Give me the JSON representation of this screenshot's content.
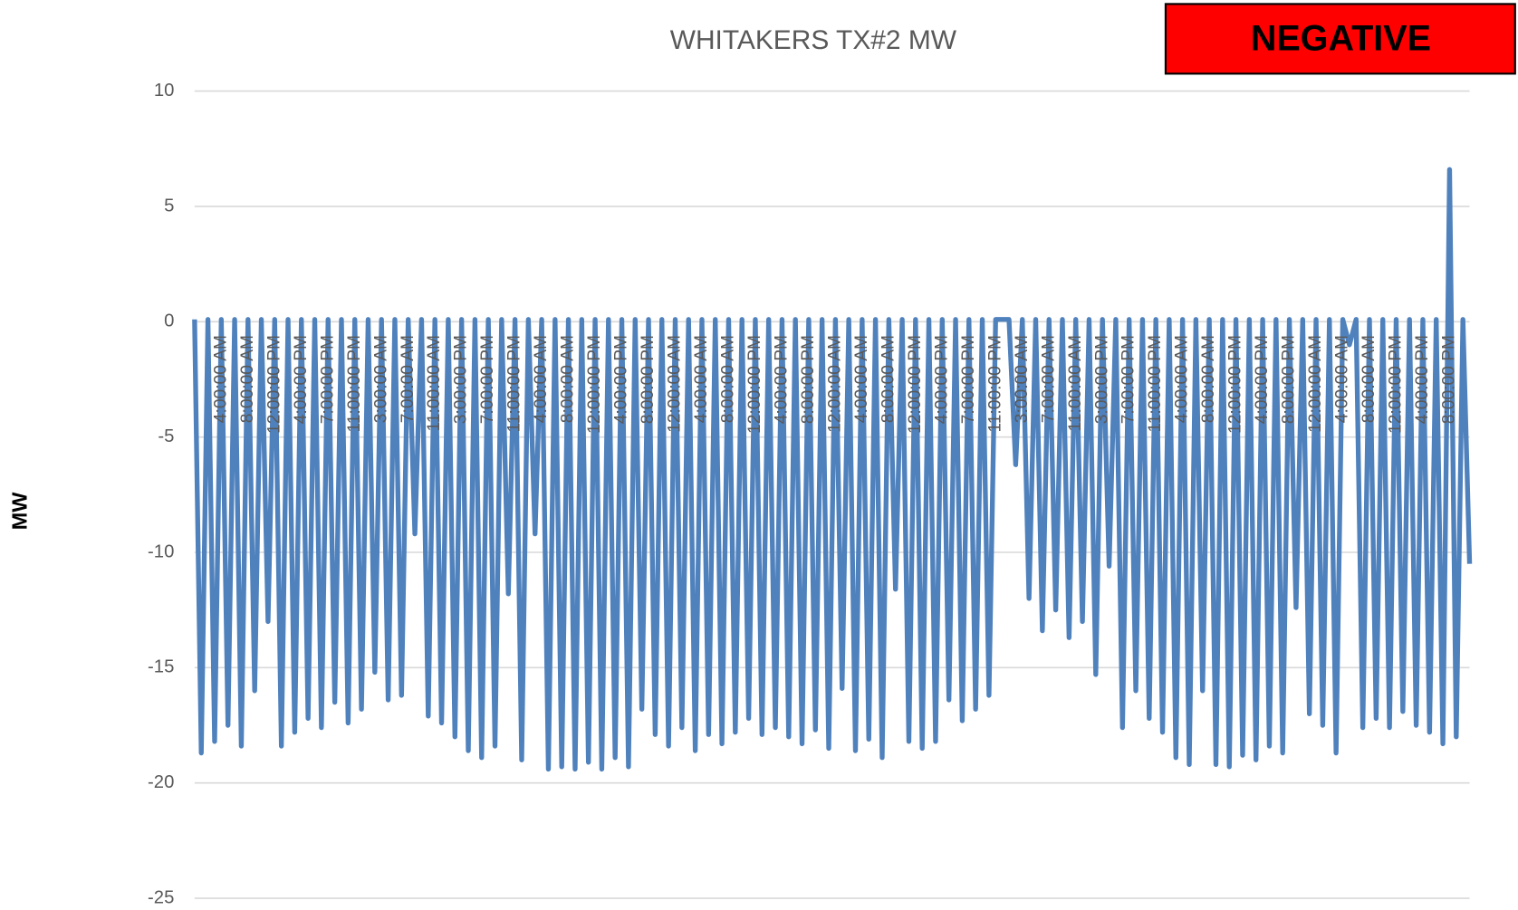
{
  "chart_data": {
    "type": "line",
    "title": "WHITAKERS TX#2 MW",
    "annotation": "NEGATIVE",
    "y_label": "MW",
    "color": "#4f81bd",
    "grid": true,
    "ylim": [
      -25,
      10
    ],
    "yticks": [
      -25,
      -20,
      -15,
      -10,
      -5,
      0,
      5,
      10
    ],
    "categories": [
      null,
      null,
      null,
      null,
      "4:00:00 AM",
      null,
      null,
      null,
      "8:00:00 AM",
      null,
      null,
      null,
      "12:00:00 PM",
      null,
      null,
      null,
      "4:00:00 PM",
      null,
      null,
      null,
      "7:00:00 PM",
      null,
      null,
      null,
      "11:00:00 PM",
      null,
      null,
      null,
      "3:00:00 AM",
      null,
      null,
      null,
      "7:00:00 AM",
      null,
      null,
      null,
      "11:00:00 AM",
      null,
      null,
      null,
      "3:00:00 PM",
      null,
      null,
      null,
      "7:00:00 PM",
      null,
      null,
      null,
      "11:00:00 PM",
      null,
      null,
      null,
      "4:00:00 AM",
      null,
      null,
      null,
      "8:00:00 AM",
      null,
      null,
      null,
      "12:00:00 PM",
      null,
      null,
      null,
      "4:00:00 PM",
      null,
      null,
      null,
      "8:00:00 PM",
      null,
      null,
      null,
      "12:00:00 AM",
      null,
      null,
      null,
      "4:00:00 AM",
      null,
      null,
      null,
      "8:00:00 AM",
      null,
      null,
      null,
      "12:00:00 PM",
      null,
      null,
      null,
      "4:00:00 PM",
      null,
      null,
      null,
      "8:00:00 PM",
      null,
      null,
      null,
      "12:00:00 AM",
      null,
      null,
      null,
      "4:00:00 AM",
      null,
      null,
      null,
      "8:00:00 AM",
      null,
      null,
      null,
      "12:00:00 PM",
      null,
      null,
      null,
      "4:00:00 PM",
      null,
      null,
      null,
      "7:00:00 PM",
      null,
      null,
      null,
      "11:00:00 PM",
      null,
      null,
      null,
      "3:00:00 AM",
      null,
      null,
      null,
      "7:00:00 AM",
      null,
      null,
      null,
      "11:00:00 AM",
      null,
      null,
      null,
      "3:00:00 PM",
      null,
      null,
      null,
      "7:00:00 PM",
      null,
      null,
      null,
      "11:00:00 PM",
      null,
      null,
      null,
      "4:00:00 AM",
      null,
      null,
      null,
      "8:00:00 AM",
      null,
      null,
      null,
      "12:00:00 PM",
      null,
      null,
      null,
      "4:00:00 PM",
      null,
      null,
      null,
      "8:00:00 PM",
      null,
      null,
      null,
      "12:00:00 AM",
      null,
      null,
      null,
      "4:00:00 AM",
      null,
      null,
      null,
      "8:00:00 AM",
      null,
      null,
      null,
      "12:00:00 PM",
      null,
      null,
      null,
      "4:00:00 PM",
      null,
      null,
      null,
      "8:00:00 PM",
      null,
      null,
      null
    ],
    "series": [
      {
        "name": "WHITAKERS TX#2 MW",
        "color": "#4f81bd",
        "values": [
          0.1,
          -18.7,
          0.1,
          -18.2,
          0.1,
          -17.5,
          0.1,
          -18.4,
          0.1,
          -16,
          0.1,
          -13,
          0.1,
          -18.4,
          0.1,
          -17.8,
          0.1,
          -17.2,
          0.1,
          -17.6,
          0.1,
          -16.5,
          0.1,
          -17.4,
          0.1,
          -16.8,
          0.1,
          -15.2,
          0.1,
          -16.4,
          0.1,
          -16.2,
          0.1,
          -9.2,
          0.1,
          -17.1,
          0.1,
          -17.4,
          0.1,
          -18,
          0.1,
          -18.6,
          0.1,
          -18.9,
          0.1,
          -18.4,
          0.1,
          -11.8,
          0.1,
          -19,
          0.1,
          -9.2,
          0.1,
          -19.4,
          0.1,
          -19.3,
          0.1,
          -19.4,
          0.1,
          -19.1,
          0.1,
          -19.4,
          0.1,
          -18.9,
          0.1,
          -19.3,
          0.1,
          -16.8,
          0.1,
          -17.9,
          0.1,
          -18.4,
          0.1,
          -17.6,
          0.1,
          -18.6,
          0.1,
          -17.9,
          0.1,
          -18.3,
          0.1,
          -17.8,
          0.1,
          -17.2,
          0.1,
          -17.9,
          0.1,
          -17.6,
          0.1,
          -18,
          0.1,
          -18.3,
          0.1,
          -17.7,
          0.1,
          -18.5,
          0.1,
          -15.9,
          0.1,
          -18.6,
          0.1,
          -18.1,
          0.1,
          -18.9,
          0.1,
          -11.6,
          0.1,
          -18.2,
          0.1,
          -18.5,
          0.1,
          -18.2,
          0.1,
          -16.4,
          0.1,
          -17.3,
          0.1,
          -16.8,
          0.1,
          -16.2,
          0.1,
          0.1,
          0.1,
          -6.2,
          0.1,
          -12,
          0.1,
          -13.4,
          0.1,
          -12.5,
          0.1,
          -13.7,
          0.1,
          -13,
          0.1,
          -15.3,
          0.1,
          -10.6,
          0.1,
          -17.6,
          0.1,
          -16,
          0.1,
          -17.2,
          0.1,
          -17.8,
          0.1,
          -18.9,
          0.1,
          -19.2,
          0.1,
          -16,
          0.1,
          -19.2,
          0.1,
          -19.3,
          0.1,
          -18.8,
          0.1,
          -19,
          0.1,
          -18.4,
          0.1,
          -18.7,
          0.1,
          -12.4,
          0.1,
          -17,
          0.1,
          -17.5,
          0.1,
          -18.7,
          0.1,
          -1,
          0.1,
          -17.6,
          0.1,
          -17.2,
          0.1,
          -17.6,
          0.1,
          -16.9,
          0.1,
          -17.5,
          0.1,
          -17.8,
          0.1,
          -18.3,
          6.6,
          -18,
          0.1,
          -10.5
        ]
      }
    ]
  }
}
